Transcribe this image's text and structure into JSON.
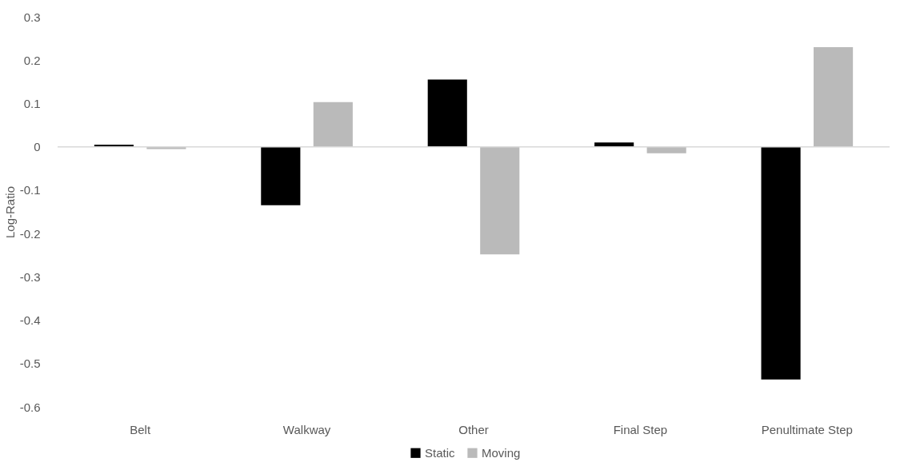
{
  "chart_data": {
    "type": "bar",
    "ylabel": "Log-Ratio",
    "categories": [
      "Belt",
      "Walkway",
      "Other",
      "Final Step",
      "Penultimate Step"
    ],
    "series": [
      {
        "name": "Static",
        "color": "#000000",
        "values": [
          0.005,
          -0.135,
          0.155,
          0.01,
          -0.537
        ]
      },
      {
        "name": "Moving",
        "color": "#bababa",
        "values": [
          -0.005,
          0.103,
          -0.248,
          -0.015,
          0.23
        ]
      }
    ],
    "ylim": [
      -0.6,
      0.3
    ],
    "yticks": [
      {
        "value": -0.6,
        "label": "-0.6"
      },
      {
        "value": -0.5,
        "label": "-0.5"
      },
      {
        "value": -0.4,
        "label": "-0.4"
      },
      {
        "value": -0.3,
        "label": "-0.3"
      },
      {
        "value": -0.2,
        "label": "-0.2"
      },
      {
        "value": -0.1,
        "label": "-0.1"
      },
      0,
      0.1,
      0.2,
      0.3
    ],
    "ref_lines": [
      {
        "axis": "y",
        "value": 0,
        "color": "#d9d9d9"
      }
    ],
    "grid": false,
    "legend": "bottom"
  }
}
